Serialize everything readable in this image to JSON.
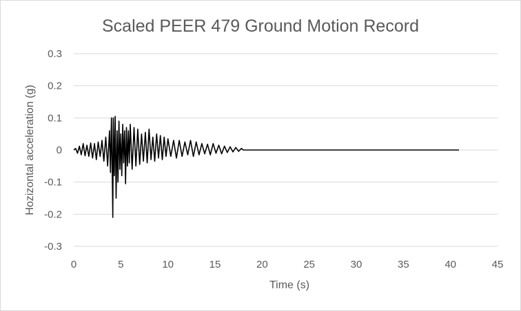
{
  "chart_data": {
    "type": "line",
    "title": "Scaled PEER 479 Ground Motion Record",
    "xlabel": "Time (s)",
    "ylabel": "Hozizontal acceleration (g)",
    "xlim": [
      0,
      45
    ],
    "ylim": [
      -0.3,
      0.3
    ],
    "xticks": [
      0,
      5,
      10,
      15,
      20,
      25,
      30,
      35,
      40,
      45
    ],
    "yticks": [
      0.3,
      0.2,
      0.1,
      0,
      -0.1,
      -0.2,
      -0.3
    ],
    "ytick_labels": [
      "0.3",
      "0.2",
      "0.1",
      "0",
      "-0.1",
      "-0.2",
      "-0.3"
    ],
    "grid": "horizontal",
    "legend": "none",
    "series_color": "#000000",
    "series": [
      {
        "x": [
          0,
          0.2,
          0.4,
          0.6,
          0.8,
          1.0,
          1.2,
          1.4,
          1.6,
          1.8,
          2.0,
          2.2,
          2.4,
          2.6,
          2.8,
          3.0,
          3.2,
          3.4,
          3.6,
          3.8,
          3.9,
          4.0,
          4.1,
          4.15,
          4.2,
          4.3,
          4.4,
          4.5,
          4.6,
          4.7,
          4.8,
          4.9,
          5.0,
          5.1,
          5.2,
          5.3,
          5.4,
          5.5,
          5.6,
          5.7,
          5.8,
          5.9,
          6.0,
          6.2,
          6.4,
          6.6,
          6.8,
          7.0,
          7.2,
          7.4,
          7.6,
          7.8,
          8.0,
          8.2,
          8.4,
          8.6,
          8.8,
          9.0,
          9.2,
          9.4,
          9.6,
          9.8,
          10.0,
          10.3,
          10.6,
          10.9,
          11.2,
          11.5,
          11.8,
          12.1,
          12.4,
          12.7,
          13.0,
          13.3,
          13.6,
          13.9,
          14.2,
          14.5,
          14.8,
          15.1,
          15.4,
          15.7,
          16.0,
          16.3,
          16.6,
          16.9,
          17.2,
          17.5,
          17.8,
          18.0,
          20,
          25,
          30,
          35,
          40,
          40.9
        ],
        "y": [
          0,
          0.005,
          -0.01,
          0.012,
          -0.015,
          0.02,
          -0.018,
          0.015,
          -0.02,
          0.022,
          -0.025,
          0.02,
          -0.03,
          0.025,
          -0.02,
          0.03,
          -0.035,
          0.04,
          -0.05,
          0.06,
          -0.07,
          0.1,
          -0.09,
          -0.21,
          0.1,
          -0.08,
          0.105,
          -0.15,
          0.06,
          -0.1,
          0.09,
          -0.06,
          0.05,
          -0.08,
          0.08,
          -0.04,
          0.06,
          -0.105,
          0.07,
          -0.05,
          0.06,
          -0.04,
          0.08,
          -0.06,
          0.07,
          -0.05,
          0.065,
          -0.045,
          0.05,
          -0.035,
          0.055,
          -0.04,
          0.065,
          -0.03,
          0.04,
          -0.035,
          0.05,
          -0.025,
          0.045,
          -0.03,
          0.04,
          -0.02,
          0.035,
          -0.02,
          0.03,
          -0.025,
          0.03,
          -0.02,
          0.025,
          -0.015,
          0.03,
          -0.02,
          0.025,
          -0.015,
          0.02,
          -0.012,
          0.018,
          -0.015,
          0.02,
          -0.01,
          0.015,
          -0.012,
          0.012,
          -0.008,
          0.01,
          -0.006,
          0.008,
          -0.004,
          0.005,
          0,
          0,
          0,
          0,
          0,
          0,
          0
        ]
      }
    ]
  }
}
